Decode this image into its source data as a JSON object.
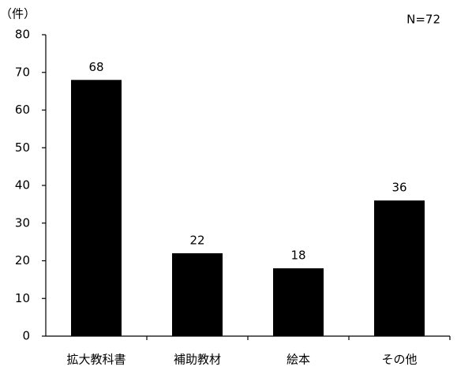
{
  "chart_data": {
    "type": "bar",
    "y_label": "（件）",
    "annotation": "N=72",
    "categories": [
      "拡大教科書",
      "補助教材",
      "絵本",
      "その他"
    ],
    "values": [
      68,
      22,
      18,
      36
    ],
    "color": "#000000",
    "ylim": [
      0,
      80
    ],
    "yticks": [
      0,
      10,
      20,
      30,
      40,
      50,
      60,
      70,
      80
    ],
    "grid": false
  }
}
